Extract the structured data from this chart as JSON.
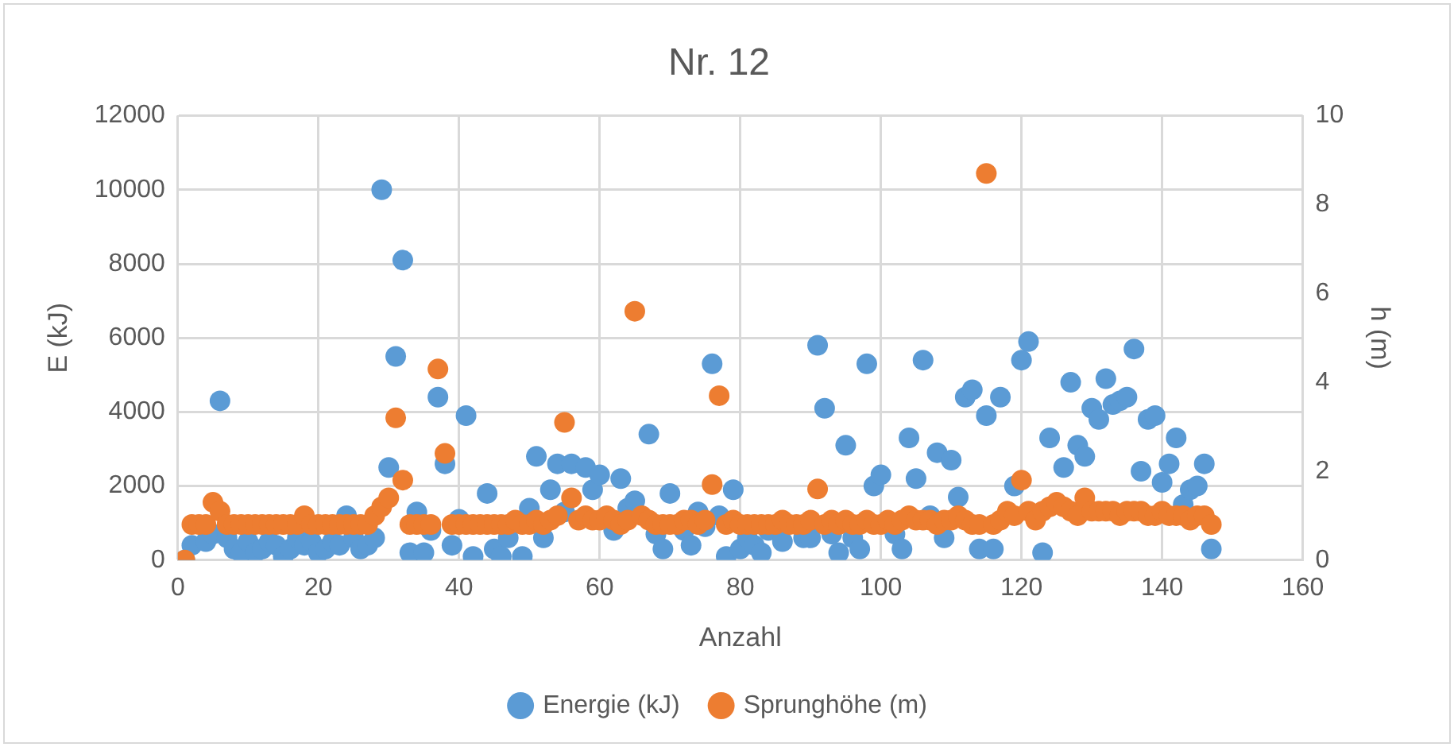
{
  "chart_data": {
    "type": "scatter",
    "title": "Nr. 12",
    "xlabel": "Anzahl",
    "ylabel": "E (kJ)",
    "y2label": "h (m)",
    "x": [
      1,
      2,
      3,
      4,
      5,
      6,
      7,
      8,
      9,
      10,
      11,
      12,
      13,
      14,
      15,
      16,
      17,
      18,
      19,
      20,
      21,
      22,
      23,
      24,
      25,
      26,
      27,
      28,
      29,
      30,
      31,
      32,
      33,
      34,
      35,
      36,
      37,
      38,
      39,
      40,
      41,
      42,
      43,
      44,
      45,
      46,
      47,
      48,
      49,
      50,
      51,
      52,
      53,
      54,
      55,
      56,
      57,
      58,
      59,
      60,
      61,
      62,
      63,
      64,
      65,
      66,
      67,
      68,
      69,
      70,
      71,
      72,
      73,
      74,
      75,
      76,
      77,
      78,
      79,
      80,
      81,
      82,
      83,
      84,
      85,
      86,
      87,
      88,
      89,
      90,
      91,
      92,
      93,
      94,
      95,
      96,
      97,
      98,
      99,
      100,
      101,
      102,
      103,
      104,
      105,
      106,
      107,
      108,
      109,
      110,
      111,
      112,
      113,
      114,
      115,
      116,
      117,
      118,
      119,
      120,
      121,
      122,
      123,
      124,
      125,
      126,
      127,
      128,
      129,
      130,
      131,
      132,
      133,
      134,
      135,
      136,
      137,
      138,
      139,
      140,
      141,
      142,
      143,
      144,
      145,
      146,
      147
    ],
    "series": [
      {
        "name": "Energie (kJ)",
        "color": "#5b9bd5",
        "values": [
          0,
          400,
          null,
          500,
          700,
          4300,
          600,
          300,
          200,
          500,
          200,
          300,
          500,
          400,
          100,
          300,
          600,
          400,
          500,
          200,
          300,
          500,
          400,
          1200,
          600,
          300,
          400,
          600,
          10000,
          2500,
          5500,
          8100,
          200,
          1300,
          200,
          800,
          4400,
          2600,
          400,
          1100,
          3900,
          100,
          null,
          1800,
          300,
          100,
          600,
          null,
          100,
          1400,
          2800,
          600,
          1900,
          2600,
          1300,
          2600,
          null,
          2500,
          1900,
          2300,
          null,
          800,
          2200,
          1400,
          1600,
          null,
          3400,
          700,
          300,
          1800,
          null,
          800,
          400,
          1300,
          900,
          5300,
          1200,
          100,
          1900,
          300,
          600,
          400,
          200,
          800,
          null,
          500,
          null,
          null,
          600,
          600,
          5800,
          4100,
          700,
          200,
          3100,
          600,
          300,
          5300,
          2000,
          2300,
          null,
          700,
          300,
          3300,
          2200,
          5400,
          1200,
          2900,
          600,
          2700,
          1700,
          4400,
          4600,
          300,
          3900,
          300,
          4400,
          null,
          2000,
          5400,
          5900,
          null,
          200,
          3300,
          null,
          2500,
          4800,
          3100,
          2800,
          4100,
          3800,
          4900,
          4200,
          4300,
          4400,
          5700,
          2400,
          3800,
          3900,
          2100,
          2600,
          3300,
          1500,
          1900,
          2000,
          2600,
          300
        ]
      },
      {
        "name": "Sprunghöhe (m)",
        "color": "#ed7d31",
        "axis": "y2",
        "values": [
          0,
          0.8,
          0.8,
          0.8,
          1.3,
          1.1,
          0.8,
          0.8,
          0.8,
          0.8,
          0.8,
          0.8,
          0.8,
          0.8,
          0.8,
          0.8,
          0.8,
          1.0,
          0.8,
          0.8,
          0.8,
          0.8,
          0.8,
          0.8,
          0.8,
          0.8,
          0.8,
          1.0,
          1.2,
          1.4,
          3.2,
          1.8,
          0.8,
          0.8,
          0.8,
          0.8,
          4.3,
          2.4,
          0.8,
          0.8,
          0.8,
          0.8,
          0.8,
          0.8,
          0.8,
          0.8,
          0.8,
          0.9,
          0.8,
          0.8,
          0.9,
          0.8,
          0.9,
          1.0,
          3.1,
          1.4,
          0.9,
          1.0,
          0.9,
          0.9,
          1.0,
          0.9,
          0.8,
          0.9,
          5.6,
          1.0,
          0.9,
          0.8,
          0.8,
          0.8,
          0.8,
          0.9,
          0.9,
          0.8,
          0.9,
          1.7,
          3.7,
          0.8,
          0.9,
          0.8,
          0.8,
          0.8,
          0.8,
          0.8,
          0.8,
          0.9,
          0.8,
          0.8,
          0.8,
          0.9,
          1.6,
          0.8,
          0.9,
          0.8,
          0.9,
          0.8,
          0.8,
          0.9,
          0.8,
          0.8,
          0.9,
          0.8,
          0.9,
          1.0,
          0.9,
          0.9,
          0.9,
          0.8,
          0.9,
          0.9,
          1.0,
          0.9,
          0.8,
          0.8,
          8.7,
          0.8,
          0.9,
          1.1,
          1.0,
          1.8,
          1.1,
          0.9,
          1.1,
          1.2,
          1.3,
          1.2,
          1.1,
          1.0,
          1.4,
          1.1,
          1.1,
          1.1,
          1.1,
          1.0,
          1.1,
          1.1,
          1.1,
          1.0,
          1.0,
          1.1,
          1.0,
          1.0,
          1.0,
          0.9,
          1.0,
          1.0,
          0.8
        ]
      }
    ],
    "xlim": [
      0,
      160
    ],
    "xticks": [
      0,
      20,
      40,
      60,
      80,
      100,
      120,
      140,
      160
    ],
    "ylim": [
      0,
      12000
    ],
    "yticks": [
      0,
      2000,
      4000,
      6000,
      8000,
      10000,
      12000
    ],
    "y2lim": [
      0,
      10
    ],
    "y2ticks": [
      0,
      2,
      4,
      6,
      8,
      10
    ],
    "grid": true,
    "legend": "bottom",
    "marker": "circle"
  }
}
